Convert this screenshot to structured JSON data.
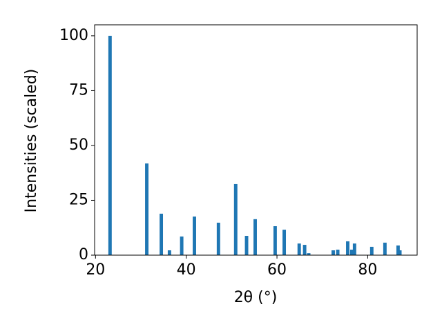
{
  "chart_data": {
    "type": "bar",
    "x_label": "2θ (°)",
    "y_label": "Intensities (scaled)",
    "x": [
      23.2,
      31.3,
      34.5,
      36.3,
      39.0,
      41.8,
      47.1,
      50.9,
      53.3,
      55.2,
      59.6,
      61.6,
      64.9,
      66.1,
      67.0,
      72.4,
      73.4,
      75.6,
      76.5,
      77.1,
      80.9,
      83.8,
      86.7,
      87.1
    ],
    "values": [
      100,
      41.8,
      18.9,
      2.2,
      8.5,
      17.6,
      14.8,
      32.4,
      8.8,
      16.4,
      13.2,
      11.6,
      5.3,
      4.7,
      0.9,
      2.2,
      2.5,
      6.3,
      2.5,
      5.3,
      3.8,
      5.7,
      4.4,
      2.2
    ],
    "color": "#1f77b4",
    "xlim": [
      19.8,
      90.9
    ],
    "xticks": [
      20,
      40,
      60,
      80
    ],
    "ylim": [
      0,
      105
    ],
    "yticks": [
      0,
      25,
      50,
      75,
      100
    ]
  }
}
